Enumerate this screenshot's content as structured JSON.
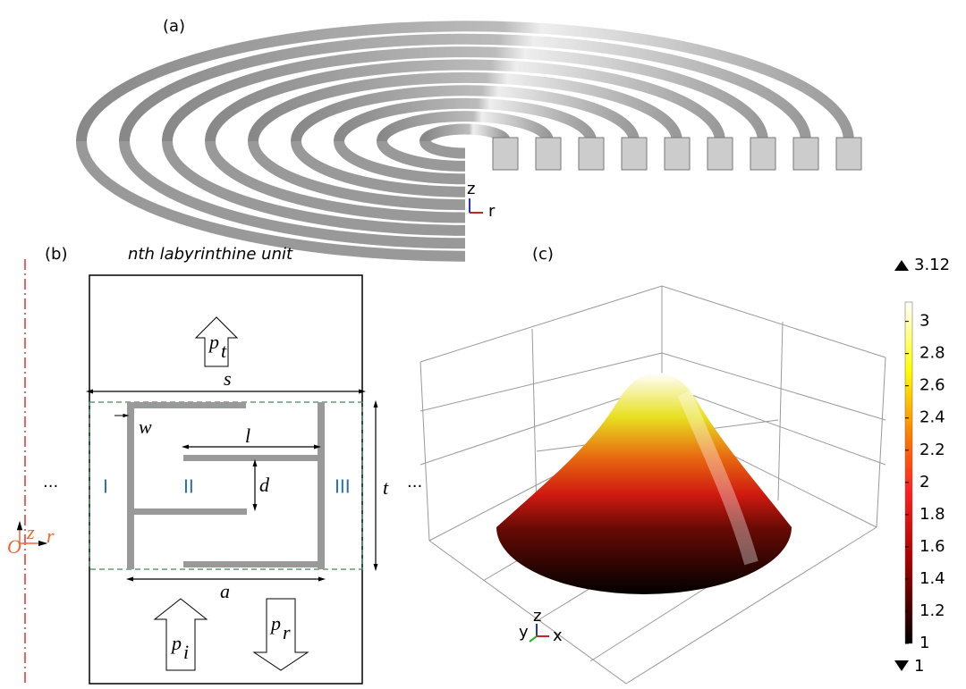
{
  "panel_a": {
    "label": "(a)",
    "axis_z": "z",
    "axis_r": "r"
  },
  "panel_b": {
    "label": "(b)",
    "title": "nth labyrinthine unit",
    "ellipsis_left": "···",
    "ellipsis_right": "···",
    "dims": {
      "s": "s",
      "w": "w",
      "l": "l",
      "d": "d",
      "t": "t",
      "a": "a"
    },
    "regions": [
      "I",
      "II",
      "III"
    ],
    "pressures": {
      "transmitted": {
        "symbol": "p",
        "subscript": "t"
      },
      "incident": {
        "symbol": "p",
        "subscript": "i"
      },
      "reflected": {
        "symbol": "p",
        "subscript": "r"
      }
    },
    "axes": {
      "origin": "O",
      "z": "z",
      "r": "r"
    }
  },
  "panel_c": {
    "label": "(c)",
    "axes": {
      "y": "y",
      "z": "z",
      "x": "x"
    },
    "colorbar": {
      "max": 3.12,
      "min": 1,
      "ticks": [
        1,
        1.2,
        1.4,
        1.6,
        1.8,
        2,
        2.2,
        2.4,
        2.6,
        2.8,
        3
      ]
    }
  }
}
